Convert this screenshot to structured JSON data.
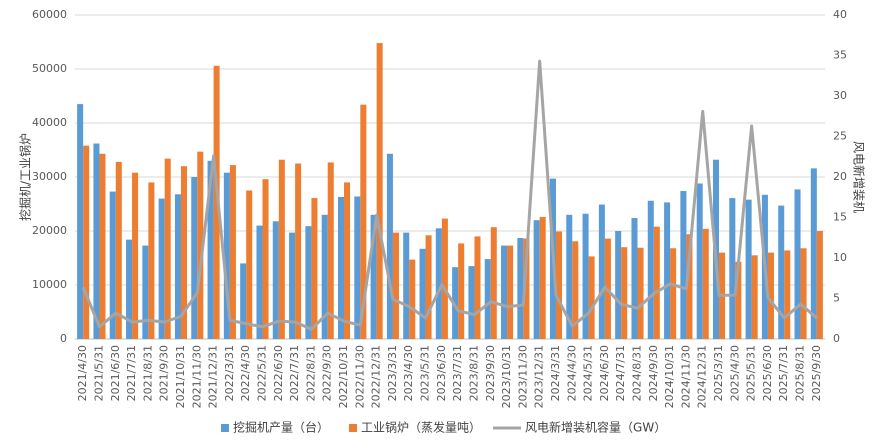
{
  "chart_data": {
    "type": "bar",
    "y_label": "挖掘机/工业锅炉",
    "y2_label": "风电新增装机",
    "categories": [
      "2021/4/30",
      "2021/5/31",
      "2021/6/30",
      "2021/7/31",
      "2021/8/31",
      "2021/9/30",
      "2021/10/31",
      "2021/11/30",
      "2021/12/31",
      "2022/3/31",
      "2022/4/30",
      "2022/5/31",
      "2022/6/30",
      "2022/7/31",
      "2022/8/31",
      "2022/9/30",
      "2022/10/31",
      "2022/11/30",
      "2022/12/31",
      "2023/3/31",
      "2023/4/30",
      "2023/5/31",
      "2023/6/30",
      "2023/7/31",
      "2023/8/31",
      "2023/9/30",
      "2023/10/31",
      "2023/11/30",
      "2023/12/31",
      "2024/3/31",
      "2024/4/30",
      "2024/5/31",
      "2024/6/30",
      "2024/7/31",
      "2024/8/31",
      "2024/9/30",
      "2024/10/31",
      "2024/11/30",
      "2024/12/31",
      "2025/3/31",
      "2025/4/30",
      "2025/5/31",
      "2025/6/30",
      "2025/7/31",
      "2025/8/31",
      "2025/9/30"
    ],
    "series": [
      {
        "name": "挖掘机产量（台）",
        "color": "#5b9bd5",
        "type": "bar",
        "values": [
          43500,
          36200,
          27300,
          18400,
          17300,
          26000,
          26800,
          30000,
          33000,
          30800,
          14000,
          21000,
          21800,
          19700,
          20900,
          23000,
          26300,
          26400,
          23000,
          34300,
          19700,
          16700,
          20500,
          13300,
          13500,
          14800,
          17300,
          18700,
          22000,
          29700,
          23000,
          23200,
          24900,
          20000,
          22400,
          25600,
          25300,
          27400,
          28800,
          33200,
          26100,
          25800,
          26700,
          24700,
          27700,
          31600
        ]
      },
      {
        "name": "工业锅炉（蒸发量吨）",
        "color": "#ed7d31",
        "type": "bar",
        "values": [
          35800,
          34300,
          32800,
          30800,
          29000,
          33400,
          32000,
          34700,
          50600,
          32200,
          27500,
          29600,
          33200,
          32500,
          26100,
          32700,
          29000,
          43400,
          54800,
          19700,
          14700,
          19200,
          22300,
          17700,
          19000,
          20700,
          17300,
          18600,
          22600,
          19900,
          18100,
          15300,
          18600,
          17000,
          16900,
          20800,
          16800,
          19400,
          20400,
          16000,
          14300,
          15500,
          16000,
          16400,
          16800,
          20000
        ]
      },
      {
        "name": "风电新增装机容量（GW）",
        "color": "#a5a5a5",
        "type": "line",
        "axis": "y2",
        "values": [
          6.4,
          1.5,
          3.2,
          2.1,
          2.3,
          2.1,
          2.8,
          5.7,
          22.6,
          2.3,
          1.9,
          1.5,
          2.2,
          2.1,
          1.2,
          3.2,
          2.2,
          1.7,
          15.3,
          4.9,
          4.0,
          2.6,
          6.7,
          3.5,
          3.0,
          4.6,
          4.0,
          4.2,
          34.3,
          5.4,
          1.6,
          3.2,
          6.4,
          4.3,
          3.8,
          5.6,
          6.8,
          6.2,
          28.1,
          5.4,
          5.4,
          26.3,
          5.1,
          2.6,
          4.3,
          2.6
        ]
      }
    ],
    "ylim": [
      0,
      60000
    ],
    "yticks": [
      0,
      10000,
      20000,
      30000,
      40000,
      50000,
      60000
    ],
    "y2lim": [
      0,
      40
    ],
    "y2ticks": [
      0,
      5,
      10,
      15,
      20,
      25,
      30,
      35,
      40
    ],
    "grid": true,
    "legend": "bottom"
  }
}
